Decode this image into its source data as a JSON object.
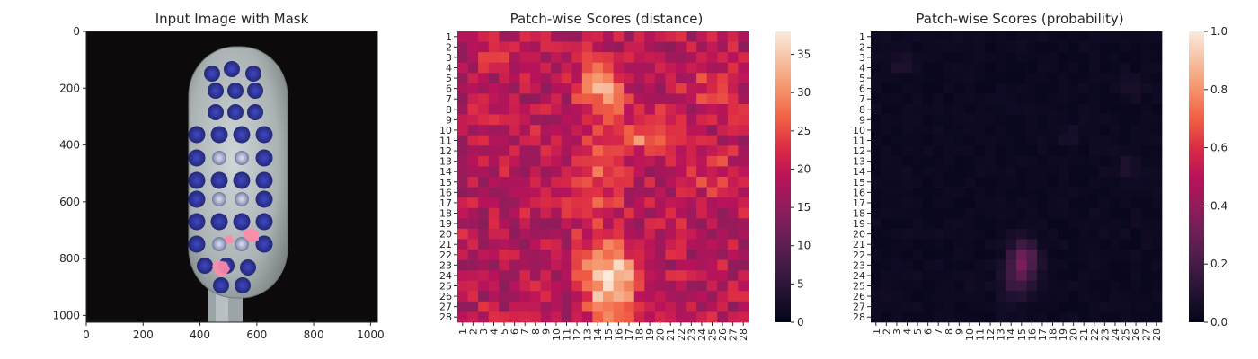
{
  "chart_data": [
    {
      "type": "image",
      "title": "Input Image with Mask",
      "xlim": [
        0,
        1024
      ],
      "ylim": [
        1024,
        0
      ],
      "xticks": [
        0,
        200,
        400,
        600,
        800,
        1000
      ],
      "yticks": [
        0,
        200,
        400,
        600,
        800,
        1000
      ],
      "colors": {
        "background": "#0d0a0c",
        "handle": "#a7afb0",
        "bristle": "#2a2f9a",
        "defect_mask": "#ff8aa8"
      }
    },
    {
      "type": "heatmap",
      "title": "Patch-wise Scores (distance)",
      "rows": 28,
      "cols": 28,
      "row_labels": [
        "1",
        "2",
        "3",
        "4",
        "5",
        "6",
        "7",
        "8",
        "9",
        "10",
        "11",
        "12",
        "13",
        "14",
        "15",
        "16",
        "17",
        "18",
        "19",
        "20",
        "21",
        "22",
        "23",
        "24",
        "25",
        "26",
        "27",
        "28"
      ],
      "col_labels": [
        "1",
        "2",
        "3",
        "4",
        "5",
        "6",
        "7",
        "8",
        "9",
        "10",
        "11",
        "12",
        "13",
        "14",
        "15",
        "16",
        "17",
        "18",
        "19",
        "20",
        "21",
        "22",
        "23",
        "24",
        "25",
        "26",
        "27",
        "28"
      ],
      "vmin": 0,
      "vmax": 38,
      "colorbar_ticks": [
        0,
        5,
        10,
        15,
        20,
        25,
        30,
        35
      ],
      "colormap": "rocket",
      "regions": [
        {
          "rows": [
            21,
            27
          ],
          "cols": [
            13,
            17
          ],
          "peak_value": 38
        },
        {
          "rows": [
            4,
            8
          ],
          "cols": [
            13,
            16
          ],
          "peak_value": 31
        },
        {
          "rows": [
            9,
            12
          ],
          "cols": [
            17,
            20
          ],
          "peak_value": 29
        },
        {
          "rows": [
            2,
            4
          ],
          "cols": [
            3,
            4
          ],
          "peak_value": 29
        }
      ]
    },
    {
      "type": "heatmap",
      "title": "Patch-wise Scores (probability)",
      "rows": 28,
      "cols": 28,
      "row_labels": [
        "1",
        "2",
        "3",
        "4",
        "5",
        "6",
        "7",
        "8",
        "9",
        "10",
        "11",
        "12",
        "13",
        "14",
        "15",
        "16",
        "17",
        "18",
        "19",
        "20",
        "21",
        "22",
        "23",
        "24",
        "25",
        "26",
        "27",
        "28"
      ],
      "col_labels": [
        "1",
        "2",
        "3",
        "4",
        "5",
        "6",
        "7",
        "8",
        "9",
        "10",
        "11",
        "12",
        "13",
        "14",
        "15",
        "16",
        "17",
        "18",
        "19",
        "20",
        "21",
        "22",
        "23",
        "24",
        "25",
        "26",
        "27",
        "28"
      ],
      "vmin": 0,
      "vmax": 1,
      "colorbar_ticks": [
        "0.0",
        "0.2",
        "0.4",
        "0.6",
        "0.8",
        "1.0"
      ],
      "colormap": "rocket",
      "regions": [
        {
          "rows": [
            21,
            25
          ],
          "cols": [
            14,
            16
          ],
          "peak_value": 0.3
        },
        {
          "rows": [
            3,
            4
          ],
          "cols": [
            3,
            4
          ],
          "peak_value": 0.1
        },
        {
          "rows": [
            5,
            6
          ],
          "cols": [
            25,
            26
          ],
          "peak_value": 0.08
        },
        {
          "rows": [
            13,
            14
          ],
          "cols": [
            25,
            26
          ],
          "peak_value": 0.08
        }
      ]
    }
  ]
}
